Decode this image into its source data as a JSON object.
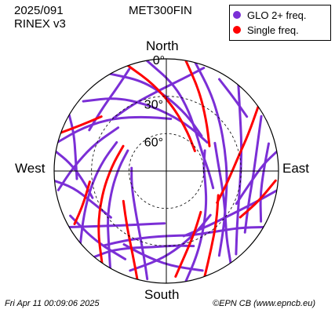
{
  "header": {
    "date": "2025/091",
    "rinex": "RINEX v3",
    "station": "MET300FIN"
  },
  "legend": {
    "items": [
      {
        "label": "GLO 2+ freq.",
        "color": "#7b2fd6"
      },
      {
        "label": "Single freq.",
        "color": "#ff0000"
      }
    ]
  },
  "directions": {
    "north": "North",
    "south": "South",
    "west": "West",
    "east": "East"
  },
  "footer": {
    "timestamp": "Fri Apr 11 00:09:06 2025",
    "credit": "©EPN CB (www.epncb.eu)"
  },
  "chart_data": {
    "type": "polar-skyplot",
    "rings": [
      {
        "elevation": 0,
        "label": "0°"
      },
      {
        "elevation": 30,
        "label": "30°"
      },
      {
        "elevation": 60,
        "label": "60°"
      }
    ],
    "series": [
      {
        "name": "GLO 2+ freq.",
        "color": "#7b2fd6",
        "tracks": [
          [
            [
              -10,
              0
            ],
            [
              5,
              20
            ],
            [
              20,
              38
            ],
            [
              40,
              52
            ],
            [
              65,
              58
            ],
            [
              90,
              56
            ],
            [
              110,
              50
            ]
          ],
          [
            [
              15,
              0
            ],
            [
              30,
              18
            ],
            [
              48,
              32
            ],
            [
              70,
              40
            ],
            [
              95,
              41
            ],
            [
              118,
              36
            ],
            [
              135,
              25
            ],
            [
              148,
              10
            ]
          ],
          [
            [
              -30,
              0
            ],
            [
              -15,
              15
            ],
            [
              0,
              30
            ],
            [
              20,
              42
            ],
            [
              45,
              50
            ]
          ],
          [
            [
              40,
              0
            ],
            [
              52,
              15
            ],
            [
              68,
              25
            ],
            [
              88,
              30
            ],
            [
              110,
              28
            ],
            [
              128,
              18
            ],
            [
              140,
              3
            ]
          ],
          [
            [
              -50,
              3
            ],
            [
              -35,
              18
            ],
            [
              -18,
              33
            ],
            [
              5,
              45
            ],
            [
              30,
              50
            ],
            [
              55,
              50
            ]
          ],
          [
            [
              60,
              2
            ],
            [
              74,
              14
            ],
            [
              92,
              20
            ],
            [
              112,
              19
            ],
            [
              128,
              10
            ]
          ],
          [
            [
              -75,
              0
            ],
            [
              -62,
              15
            ],
            [
              -45,
              30
            ],
            [
              -22,
              43
            ],
            [
              5,
              48
            ]
          ],
          [
            [
              -100,
              2
            ],
            [
              -88,
              15
            ],
            [
              -70,
              28
            ],
            [
              -48,
              38
            ]
          ],
          [
            [
              75,
              5
            ],
            [
              90,
              12
            ],
            [
              105,
              12
            ],
            [
              118,
              4
            ]
          ],
          [
            [
              -130,
              0
            ],
            [
              -118,
              15
            ],
            [
              -102,
              28
            ],
            [
              -82,
              38
            ],
            [
              -60,
              44
            ]
          ],
          [
            [
              -150,
              0
            ],
            [
              -142,
              15
            ],
            [
              -128,
              30
            ],
            [
              -108,
              44
            ],
            [
              -85,
              52
            ],
            [
              -62,
              55
            ]
          ],
          [
            [
              170,
              0
            ],
            [
              160,
              18
            ],
            [
              148,
              34
            ],
            [
              130,
              48
            ],
            [
              108,
              57
            ],
            [
              85,
              60
            ],
            [
              62,
              55
            ]
          ],
          [
            [
              -170,
              2
            ],
            [
              -165,
              20
            ],
            [
              -155,
              38
            ],
            [
              -138,
              52
            ],
            [
              -112,
              60
            ],
            [
              -85,
              62
            ]
          ],
          [
            [
              145,
              0
            ],
            [
              138,
              18
            ],
            [
              124,
              33
            ],
            [
              104,
              44
            ],
            [
              82,
              48
            ],
            [
              60,
              45
            ]
          ],
          [
            [
              -120,
              0
            ],
            [
              -128,
              18
            ],
            [
              -140,
              33
            ],
            [
              -158,
              44
            ],
            [
              -178,
              48
            ]
          ],
          [
            [
              120,
              0
            ],
            [
              128,
              16
            ],
            [
              142,
              28
            ],
            [
              160,
              35
            ],
            [
              178,
              38
            ],
            [
              -165,
              35
            ],
            [
              -150,
              26
            ],
            [
              -140,
              12
            ]
          ],
          [
            [
              100,
              0
            ],
            [
              110,
              15
            ],
            [
              125,
              28
            ],
            [
              145,
              35
            ],
            [
              165,
              36
            ]
          ],
          [
            [
              -95,
              0
            ],
            [
              -100,
              14
            ],
            [
              -112,
              25
            ],
            [
              -130,
              32
            ]
          ],
          [
            [
              -140,
              0
            ],
            [
              -145,
              12
            ],
            [
              -155,
              22
            ],
            [
              -170,
              28
            ],
            [
              175,
              30
            ],
            [
              160,
              26
            ]
          ],
          [
            [
              -80,
              0
            ],
            [
              -85,
              12
            ],
            [
              -95,
              22
            ],
            [
              -110,
              27
            ]
          ],
          [
            [
              80,
              0
            ],
            [
              86,
              12
            ],
            [
              98,
              22
            ],
            [
              115,
              28
            ]
          ],
          [
            [
              -160,
              5
            ],
            [
              -175,
              18
            ],
            [
              170,
              28
            ],
            [
              152,
              36
            ],
            [
              135,
              40
            ]
          ],
          [
            [
              160,
              5
            ],
            [
              178,
              14
            ],
            [
              -165,
              20
            ],
            [
              -150,
              22
            ]
          ],
          [
            [
              -115,
              5
            ],
            [
              -135,
              10
            ],
            [
              -155,
              12
            ]
          ],
          [
            [
              20,
              2
            ],
            [
              10,
              15
            ],
            [
              -5,
              25
            ],
            [
              -25,
              30
            ],
            [
              -45,
              30
            ]
          ],
          [
            [
              -20,
              3
            ],
            [
              -30,
              12
            ],
            [
              -45,
              18
            ],
            [
              -62,
              20
            ]
          ],
          [
            [
              30,
              5
            ],
            [
              42,
              10
            ],
            [
              56,
              12
            ]
          ],
          [
            [
              -60,
              0
            ],
            [
              -68,
              10
            ],
            [
              -80,
              16
            ],
            [
              -95,
              18
            ]
          ]
        ]
      },
      {
        "name": "Single freq.",
        "color": "#ff0000",
        "tracks": [
          [
            [
              -20,
              0
            ],
            [
              -8,
              20
            ],
            [
              8,
              40
            ],
            [
              30,
              55
            ],
            [
              55,
              62
            ]
          ],
          [
            [
              10,
              0
            ],
            [
              22,
              20
            ],
            [
              38,
              38
            ],
            [
              60,
              50
            ]
          ],
          [
            [
              55,
              0
            ],
            [
              66,
              18
            ],
            [
              80,
              32
            ],
            [
              100,
              40
            ],
            [
              122,
              42
            ]
          ],
          [
            [
              -145,
              0
            ],
            [
              -130,
              18
            ],
            [
              -110,
              35
            ],
            [
              -85,
              46
            ],
            [
              -60,
              50
            ]
          ],
          [
            [
              -165,
              0
            ],
            [
              -158,
              18
            ],
            [
              -145,
              35
            ],
            [
              -125,
              48
            ]
          ],
          [
            [
              160,
              0
            ],
            [
              150,
              18
            ],
            [
              135,
              33
            ],
            [
              115,
              44
            ]
          ],
          [
            [
              -120,
              5
            ],
            [
              -112,
              18
            ],
            [
              -98,
              28
            ]
          ],
          [
            [
              175,
              5
            ],
            [
              168,
              20
            ],
            [
              156,
              35
            ],
            [
              140,
              47
            ]
          ],
          [
            [
              -70,
              0
            ],
            [
              -62,
              12
            ],
            [
              -50,
              22
            ]
          ],
          [
            [
              95,
              2
            ],
            [
              108,
              12
            ],
            [
              122,
              20
            ]
          ]
        ]
      }
    ]
  }
}
